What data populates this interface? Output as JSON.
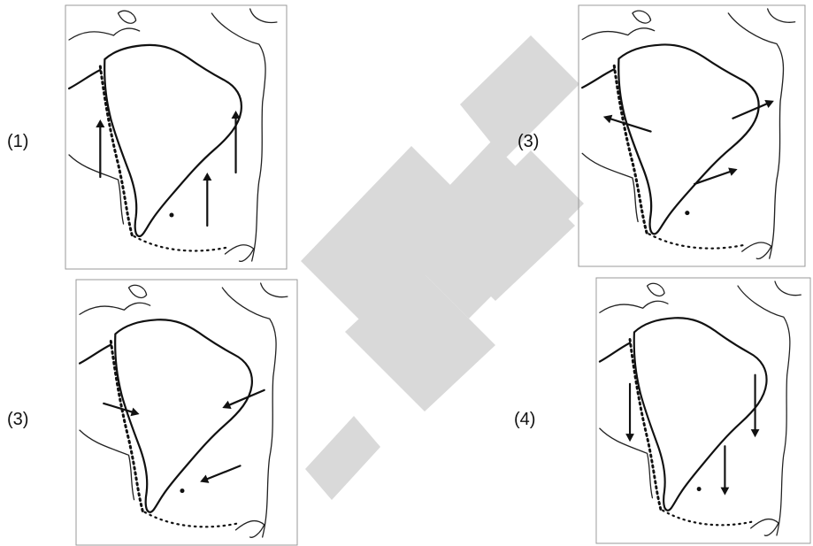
{
  "options": [
    {
      "label": "(1)",
      "direction": "north"
    },
    {
      "label": "(3)",
      "direction": "diverging-outward"
    },
    {
      "label": "(3)",
      "direction": "converging-west"
    },
    {
      "label": "(4)",
      "direction": "south"
    }
  ],
  "watermark": {
    "color": "#d9d9d9"
  }
}
